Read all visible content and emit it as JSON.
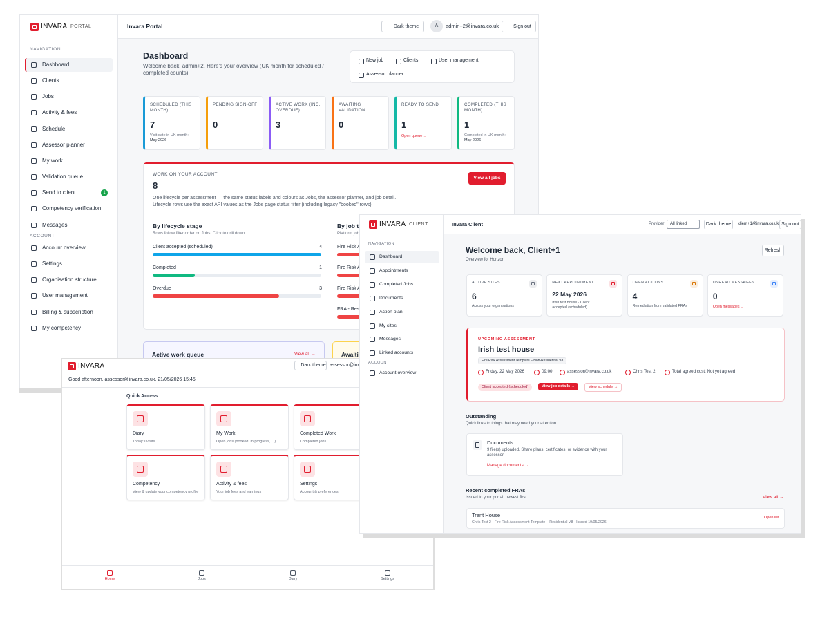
{
  "admin": {
    "brand": "INVARA",
    "brand_sub": "PORTAL",
    "header_title": "Invara Portal",
    "theme_button": "Dark theme",
    "avatar": "A",
    "user": "admin+2@invara.co.uk",
    "sign_out": "Sign out",
    "nav_heading": "NAVIGATION",
    "nav": [
      "Dashboard",
      "Clients",
      "Jobs",
      "Activity & fees",
      "Schedule",
      "Assessor planner",
      "My work",
      "Validation queue",
      "Send to client",
      "Competency verification",
      "Messages"
    ],
    "send_badge": "1",
    "account_heading": "ACCOUNT",
    "account_nav": [
      "Account overview",
      "Settings",
      "Organisation structure",
      "User management",
      "Billing & subscription",
      "My competency"
    ],
    "title": "Dashboard",
    "welcome": "Welcome back, admin+2. Here's your overview (UK month for scheduled / completed counts).",
    "quick_actions": [
      "New job",
      "Clients",
      "User management",
      "Assessor planner"
    ],
    "stats": [
      {
        "label": "SCHEDULED (THIS MONTH)",
        "value": 7,
        "note": "Visit date in UK month:",
        "note2": "May 2026",
        "color": "#1a9bd7"
      },
      {
        "label": "PENDING SIGN-OFF",
        "value": 0,
        "color": "#f59e0b"
      },
      {
        "label": "ACTIVE WORK (INC. OVERDUE)",
        "value": 3,
        "color": "#8b5cf6"
      },
      {
        "label": "AWAITING VALIDATION",
        "value": 0,
        "color": "#f97316"
      },
      {
        "label": "READY TO SEND",
        "value": 1,
        "link": "Open queue →",
        "color": "#14b8a6"
      },
      {
        "label": "COMPLETED (THIS MONTH)",
        "value": 1,
        "note": "Completed in UK month:",
        "note2": "May 2026",
        "color": "#10b981"
      }
    ],
    "work": {
      "label": "WORK ON YOUR ACCOUNT",
      "value": 8,
      "button": "View all jobs",
      "desc1": "One lifecycle per assessment — the same status labels and colours as Jobs, the assessor planner, and job detail.",
      "desc2": "Lifecycle rows use the exact API values as the Jobs page status filter (including legacy \"booked\" rows).",
      "lifecycle": {
        "title": "By lifecycle stage",
        "subtitle": "Rows follow filter order on Jobs. Click to drill down.",
        "rows": [
          {
            "label": "Client accepted (scheduled)",
            "value": 4,
            "color": "#0ea5e9"
          },
          {
            "label": "Completed",
            "value": 1,
            "color": "#10b981"
          },
          {
            "label": "Overdue",
            "value": 3,
            "color": "#ef4444"
          }
        ]
      },
      "job_type": {
        "title": "By job typ",
        "subtitle": "Platform job",
        "rows": [
          "Fire Risk A",
          "Fire Risk A",
          "Fire Risk A",
          "FRA - Resi"
        ]
      }
    },
    "queue": {
      "title": "Active work queue",
      "link": "View all →"
    },
    "awaiting": "Awaitin"
  },
  "assessor": {
    "brand": "INVARA",
    "theme_button": "Dark theme",
    "user": "assessor@invara.co.uk",
    "greeting": "Good afternoon, assessor@invara.co.uk. 21/05/2026 15:45",
    "quick_access": "Quick Access",
    "tiles": [
      {
        "title": "Diary",
        "desc": "Today's visits"
      },
      {
        "title": "My Work",
        "desc": "Open jobs (booked, in progress, ...)"
      },
      {
        "title": "Completed Work",
        "desc": "Completed jobs"
      },
      {
        "title": "Competency",
        "desc": "View & update your competency profile"
      },
      {
        "title": "Activity & fees",
        "desc": "Your job fees and earnings"
      },
      {
        "title": "Settings",
        "desc": "Account & preferences"
      }
    ],
    "bottom_nav": [
      "Home",
      "Jobs",
      "Diary",
      "Settings"
    ]
  },
  "client": {
    "brand": "INVARA",
    "brand_sub": "CLIENT",
    "header_title": "Invara Client",
    "provider_label": "Provider",
    "provider_value": "All linked",
    "theme_button": "Dark theme",
    "user": "client+1@invara.co.uk",
    "sign_out": "Sign out",
    "nav_heading": "NAVIGATION",
    "nav": [
      "Dashboard",
      "Appointments",
      "Completed Jobs",
      "Documents",
      "Action plan",
      "My sites",
      "Messages",
      "Linked accounts"
    ],
    "account_heading": "ACCOUNT",
    "account_nav": [
      "Account overview"
    ],
    "title": "Welcome back, Client+1",
    "subtitle": "Overview for Horizon",
    "refresh": "Refresh",
    "cards": [
      {
        "label": "ACTIVE SITES",
        "value": 6,
        "note": "Across your organisations"
      },
      {
        "label": "NEXT APPOINTMENT",
        "value": "22 May 2026",
        "note": "Irish test house · Client accepted (scheduled)"
      },
      {
        "label": "OPEN ACTIONS",
        "value": 4,
        "note": "Remediation from validated FRAs"
      },
      {
        "label": "UNREAD MESSAGES",
        "value": 0,
        "link": "Open messages →"
      }
    ],
    "upcoming": {
      "label": "UPCOMING ASSESSMENT",
      "title": "Irish test house",
      "template": "Fire Risk Assessment Template – Non-Residential V8",
      "date": "Friday, 22 May 2026",
      "time": "09:00",
      "email": "assessor@invara.co.uk",
      "assessor": "Chris Test 2",
      "cost": "Total agreed cost: Not yet agreed",
      "status": "Client accepted (scheduled)",
      "button1": "View job details →",
      "button2": "View schedule →"
    },
    "outstanding": {
      "title": "Outstanding",
      "subtitle": "Quick links to things that may need your attention.",
      "card": {
        "title": "Documents",
        "desc": "9 file(s) uploaded. Share plans, certificates, or evidence with your assessor.",
        "link": "Manage documents →"
      }
    },
    "recent": {
      "title": "Recent completed FRAs",
      "subtitle": "Issued to your portal, newest first.",
      "link": "View all →",
      "item": {
        "title": "Trent House",
        "meta": "Chris Test 2 · Fire Risk Assessment Template – Residential V8 · Issued 19/05/2026",
        "link": "Open list"
      }
    }
  }
}
